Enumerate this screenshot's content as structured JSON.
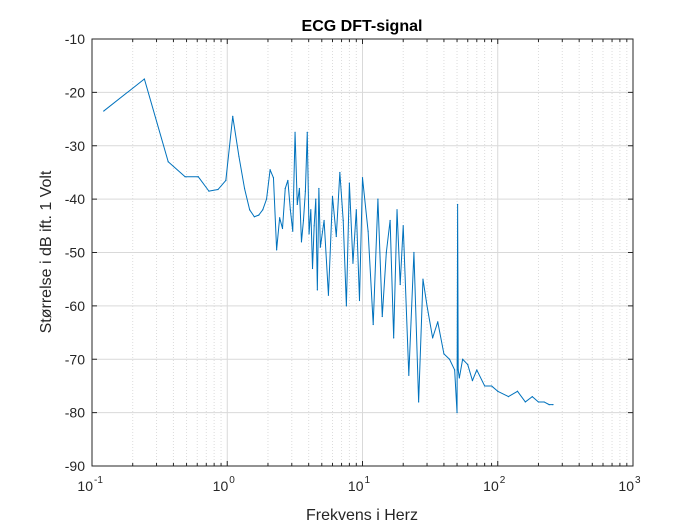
{
  "chart_data": {
    "type": "line",
    "title": "ECG DFT-signal",
    "xlabel": "Frekvens i Herz",
    "ylabel": "Størrelse i dB ift. 1 Volt",
    "x_scale": "log",
    "xlim": [
      0.1,
      1000
    ],
    "ylim": [
      -90,
      -10
    ],
    "grid": true,
    "x_ticks": [
      {
        "base": "10",
        "exp": "-1"
      },
      {
        "base": "10",
        "exp": "0"
      },
      {
        "base": "10",
        "exp": "1"
      },
      {
        "base": "10",
        "exp": "2"
      },
      {
        "base": "10",
        "exp": "3"
      }
    ],
    "y_ticks": [
      "-90",
      "-80",
      "-70",
      "-60",
      "-50",
      "-40",
      "-30",
      "-20",
      "-10"
    ],
    "series": [
      {
        "color": "#0072BD",
        "x": [
          0.122,
          0.244,
          0.366,
          0.488,
          0.61,
          0.732,
          0.854,
          0.976,
          1.098,
          1.22,
          1.342,
          1.464,
          1.586,
          1.708,
          1.83,
          1.952,
          2.074,
          2.196,
          2.318,
          2.44,
          2.562,
          2.684,
          2.806,
          2.928,
          3.05,
          3.172,
          3.294,
          3.416,
          3.538,
          3.66,
          3.782,
          3.904,
          4.026,
          4.148,
          4.27,
          4.392,
          4.514,
          4.636,
          4.758,
          4.88,
          5.2,
          5.6,
          6.0,
          6.4,
          6.8,
          7.2,
          7.6,
          8.0,
          8.5,
          9.0,
          9.5,
          10,
          11,
          12,
          13,
          14,
          15,
          16,
          17,
          18,
          19,
          20,
          22,
          24,
          26,
          28,
          30,
          33,
          36,
          40,
          44,
          48,
          50,
          50.5,
          51,
          52,
          55,
          60,
          65,
          70,
          80,
          90,
          100,
          120,
          140,
          160,
          180,
          200,
          220,
          240,
          256
        ],
        "y": [
          -23.5,
          -17.5,
          -33,
          -35.8,
          -35.8,
          -38.5,
          -38.2,
          -36.5,
          -24.5,
          -32,
          -38,
          -42,
          -43.3,
          -43,
          -42,
          -40,
          -34.5,
          -36,
          -49.5,
          -43.5,
          -45.5,
          -38,
          -36.5,
          -42,
          -46,
          -27.5,
          -41,
          -38,
          -48,
          -44,
          -38.5,
          -27.5,
          -46.5,
          -42,
          -53,
          -45,
          -40,
          -57,
          -38,
          -49,
          -44,
          -58,
          -39.5,
          -47,
          -35,
          -44,
          -60,
          -37,
          -52,
          -42,
          -59,
          -36,
          -46,
          -63.5,
          -40,
          -62,
          -50,
          -44,
          -66,
          -42,
          -56,
          -45,
          -73,
          -50,
          -78,
          -55,
          -60,
          -66,
          -63,
          -69,
          -70,
          -72,
          -80,
          -41,
          -72,
          -73.5,
          -70,
          -71,
          -74,
          -72,
          -75,
          -75,
          -76,
          -77,
          -76,
          -78,
          -77,
          -78,
          -78,
          -78.5,
          -78.5
        ]
      }
    ]
  }
}
